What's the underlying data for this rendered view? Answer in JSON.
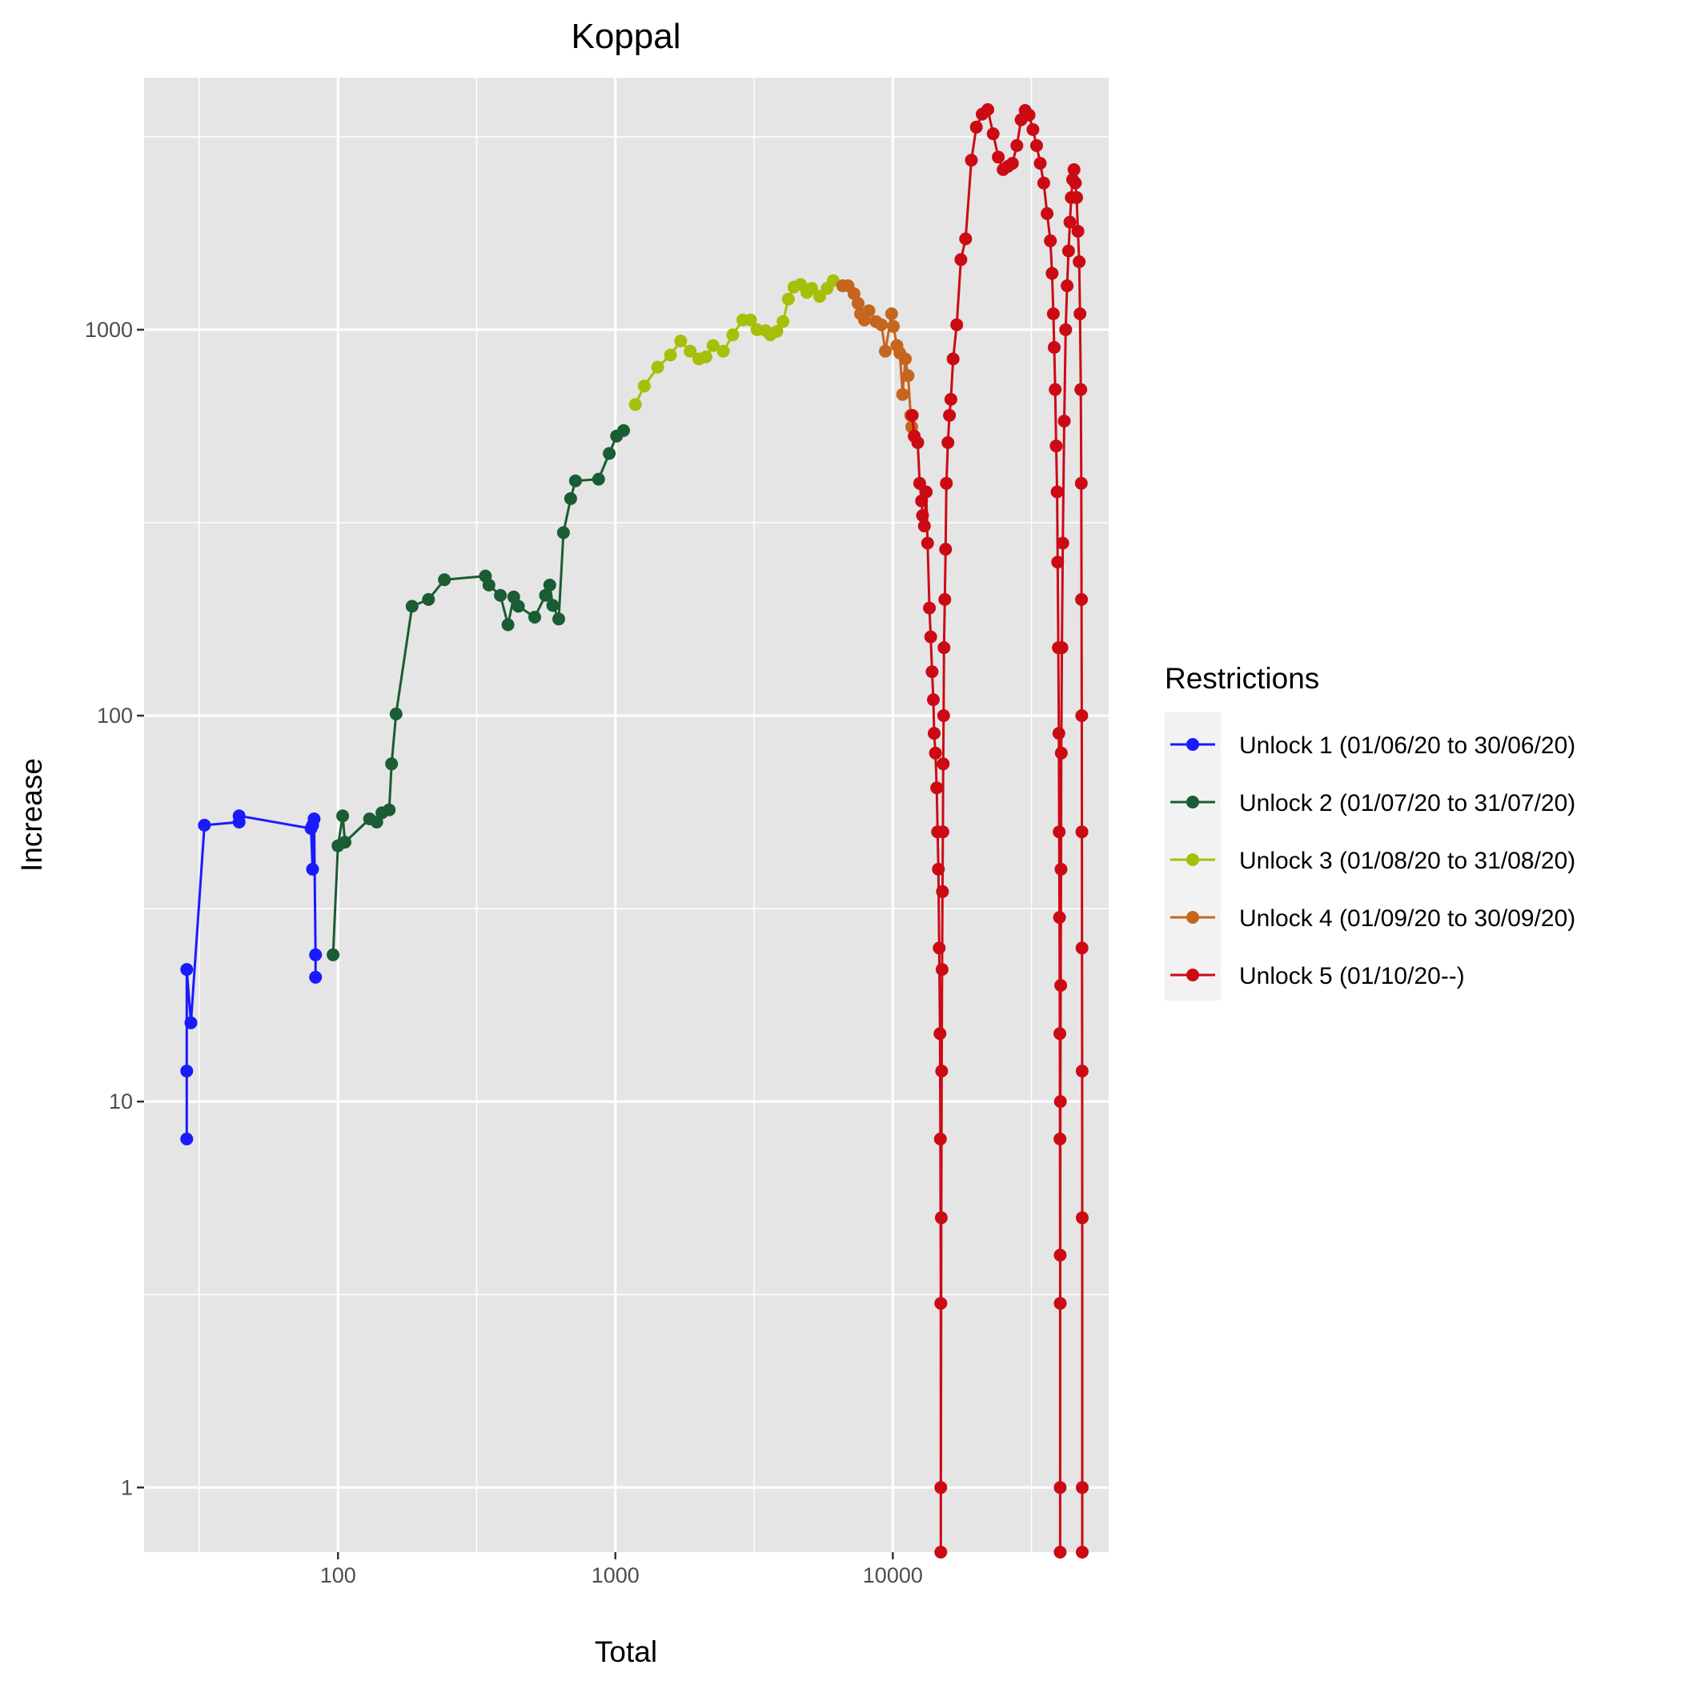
{
  "chart_data": {
    "type": "line",
    "title": "Koppal",
    "xlabel": "Total",
    "ylabel": "Increase",
    "x_scale": "log10",
    "y_scale": "log10",
    "xlim": [
      20,
      60000
    ],
    "ylim": [
      0.68,
      4500
    ],
    "x_ticks": [
      100,
      1000,
      10000
    ],
    "x_tick_labels": [
      "100",
      "1000",
      "10000"
    ],
    "y_ticks": [
      1,
      10,
      100,
      1000
    ],
    "y_tick_labels": [
      "1",
      "10",
      "100",
      "1000"
    ],
    "grid": true,
    "legend": {
      "title": "Restrictions",
      "position": "right"
    },
    "series": [
      {
        "name": "Unlock 1 (01/06/20 to 30/06/20)",
        "color": "#1a1aff",
        "points": [
          [
            28.5,
            8
          ],
          [
            28.5,
            12
          ],
          [
            28.5,
            22
          ],
          [
            29.5,
            16
          ],
          [
            33,
            52
          ],
          [
            44,
            53
          ],
          [
            44,
            55
          ],
          [
            80,
            51
          ],
          [
            81,
            40
          ],
          [
            81,
            52
          ],
          [
            82,
            54
          ],
          [
            83,
            24
          ],
          [
            83,
            21
          ]
        ]
      },
      {
        "name": "Unlock 2 (01/07/20 to 31/07/20)",
        "color": "#1a5c33",
        "points": [
          [
            96,
            24
          ],
          [
            100,
            46
          ],
          [
            104,
            55
          ],
          [
            106,
            47
          ],
          [
            130,
            54
          ],
          [
            138,
            53
          ],
          [
            144,
            56
          ],
          [
            153,
            57
          ],
          [
            156,
            75
          ],
          [
            162,
            101
          ],
          [
            185,
            192
          ],
          [
            212,
            200
          ],
          [
            242,
            225
          ],
          [
            340,
            230
          ],
          [
            350,
            218
          ],
          [
            385,
            205
          ],
          [
            410,
            172
          ],
          [
            430,
            203
          ],
          [
            447,
            192
          ],
          [
            512,
            180
          ],
          [
            560,
            205
          ],
          [
            580,
            218
          ],
          [
            595,
            193
          ],
          [
            625,
            178
          ],
          [
            650,
            298
          ],
          [
            690,
            365
          ],
          [
            718,
            406
          ],
          [
            870,
            410
          ],
          [
            950,
            478
          ],
          [
            1010,
            530
          ],
          [
            1070,
            548
          ]
        ]
      },
      {
        "name": "Unlock 3 (01/08/20 to 31/08/20)",
        "color": "#a6bf0a",
        "points": [
          [
            1180,
            640
          ],
          [
            1270,
            715
          ],
          [
            1420,
            800
          ],
          [
            1580,
            860
          ],
          [
            1720,
            935
          ],
          [
            1860,
            880
          ],
          [
            2000,
            840
          ],
          [
            2120,
            850
          ],
          [
            2250,
            910
          ],
          [
            2450,
            880
          ],
          [
            2650,
            970
          ],
          [
            2880,
            1060
          ],
          [
            3070,
            1060
          ],
          [
            3240,
            1000
          ],
          [
            3480,
            995
          ],
          [
            3620,
            970
          ],
          [
            3820,
            990
          ],
          [
            4020,
            1050
          ],
          [
            4200,
            1200
          ],
          [
            4400,
            1290
          ],
          [
            4650,
            1310
          ],
          [
            4900,
            1250
          ],
          [
            5100,
            1280
          ],
          [
            5450,
            1220
          ],
          [
            5800,
            1280
          ],
          [
            6100,
            1340
          ]
        ]
      },
      {
        "name": "Unlock 4 (01/09/20 to 30/09/20)",
        "color": "#c6651e",
        "points": [
          [
            6600,
            1300
          ],
          [
            6900,
            1300
          ],
          [
            7250,
            1240
          ],
          [
            7500,
            1170
          ],
          [
            7650,
            1100
          ],
          [
            7900,
            1060
          ],
          [
            8200,
            1120
          ],
          [
            8700,
            1050
          ],
          [
            9100,
            1030
          ],
          [
            9400,
            880
          ],
          [
            9900,
            1100
          ],
          [
            10050,
            1020
          ],
          [
            10350,
            910
          ],
          [
            10600,
            870
          ],
          [
            10850,
            680
          ],
          [
            11100,
            840
          ],
          [
            11350,
            760
          ],
          [
            11600,
            600
          ],
          [
            11700,
            560
          ]
        ]
      },
      {
        "name": "Unlock 5 (01/10/20--)",
        "color": "#cc0a14",
        "points": [
          [
            11750,
            600
          ],
          [
            11950,
            530
          ],
          [
            12300,
            510
          ],
          [
            12500,
            400
          ],
          [
            12700,
            360
          ],
          [
            12800,
            330
          ],
          [
            13000,
            310
          ],
          [
            13200,
            380
          ],
          [
            13350,
            280
          ],
          [
            13550,
            190
          ],
          [
            13700,
            160
          ],
          [
            13850,
            130
          ],
          [
            14000,
            110
          ],
          [
            14100,
            90
          ],
          [
            14250,
            80
          ],
          [
            14400,
            65
          ],
          [
            14500,
            50
          ],
          [
            14600,
            40
          ],
          [
            14700,
            25
          ],
          [
            14800,
            15
          ],
          [
            14850,
            8
          ],
          [
            14900,
            3
          ],
          [
            14900,
            1
          ],
          [
            14900,
            0.68
          ],
          [
            14950,
            5
          ],
          [
            15000,
            12
          ],
          [
            15050,
            22
          ],
          [
            15100,
            35
          ],
          [
            15150,
            50
          ],
          [
            15200,
            75
          ],
          [
            15250,
            100
          ],
          [
            15300,
            150
          ],
          [
            15400,
            200
          ],
          [
            15500,
            270
          ],
          [
            15600,
            400
          ],
          [
            15800,
            510
          ],
          [
            16000,
            600
          ],
          [
            16200,
            660
          ],
          [
            16500,
            840
          ],
          [
            17000,
            1030
          ],
          [
            17600,
            1520
          ],
          [
            18300,
            1720
          ],
          [
            19200,
            2750
          ],
          [
            20000,
            3350
          ],
          [
            21000,
            3620
          ],
          [
            22000,
            3720
          ],
          [
            23000,
            3220
          ],
          [
            24000,
            2800
          ],
          [
            25000,
            2600
          ],
          [
            26000,
            2650
          ],
          [
            27000,
            2700
          ],
          [
            28000,
            3000
          ],
          [
            29000,
            3500
          ],
          [
            30000,
            3700
          ],
          [
            31000,
            3600
          ],
          [
            32000,
            3300
          ],
          [
            33000,
            3000
          ],
          [
            34000,
            2700
          ],
          [
            35000,
            2400
          ],
          [
            36000,
            2000
          ],
          [
            37000,
            1700
          ],
          [
            37500,
            1400
          ],
          [
            37900,
            1100
          ],
          [
            38200,
            900
          ],
          [
            38500,
            700
          ],
          [
            38800,
            500
          ],
          [
            39100,
            380
          ],
          [
            39300,
            250
          ],
          [
            39500,
            150
          ],
          [
            39700,
            90
          ],
          [
            39800,
            50
          ],
          [
            39900,
            30
          ],
          [
            40000,
            15
          ],
          [
            40050,
            8
          ],
          [
            40100,
            4
          ],
          [
            40100,
            1
          ],
          [
            40100,
            0.68
          ],
          [
            40150,
            3
          ],
          [
            40200,
            10
          ],
          [
            40300,
            20
          ],
          [
            40400,
            40
          ],
          [
            40500,
            80
          ],
          [
            40700,
            150
          ],
          [
            41000,
            280
          ],
          [
            41500,
            580
          ],
          [
            42000,
            1000
          ],
          [
            42500,
            1300
          ],
          [
            43000,
            1600
          ],
          [
            43500,
            1900
          ],
          [
            44000,
            2200
          ],
          [
            44500,
            2450
          ],
          [
            45000,
            2600
          ],
          [
            45500,
            2400
          ],
          [
            46000,
            2200
          ],
          [
            46500,
            1800
          ],
          [
            47000,
            1500
          ],
          [
            47300,
            1100
          ],
          [
            47600,
            700
          ],
          [
            47800,
            400
          ],
          [
            47900,
            200
          ],
          [
            48000,
            100
          ],
          [
            48050,
            50
          ],
          [
            48100,
            25
          ],
          [
            48150,
            12
          ],
          [
            48200,
            5
          ],
          [
            48200,
            1
          ],
          [
            48200,
            0.68
          ]
        ]
      }
    ]
  }
}
